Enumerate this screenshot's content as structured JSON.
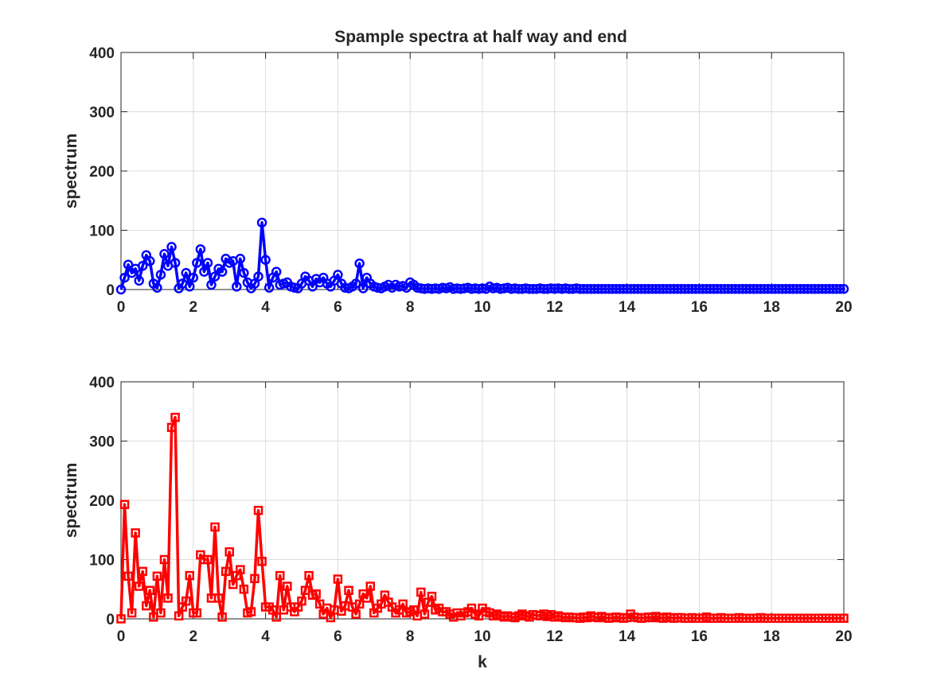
{
  "figure_title": "Spample spectra at half way and end",
  "chart_data": [
    {
      "type": "line",
      "title": "Spample spectra at half way and end",
      "xlabel": "",
      "ylabel": "spectrum",
      "xlim": [
        0,
        20
      ],
      "ylim": [
        0,
        400
      ],
      "xticks": [
        0,
        2,
        4,
        6,
        8,
        10,
        12,
        14,
        16,
        18,
        20
      ],
      "yticks": [
        0,
        100,
        200,
        300,
        400
      ],
      "grid": true,
      "color": "#0000ff",
      "marker": "circle",
      "series": [
        {
          "x": [
            0,
            0.1,
            0.2,
            0.3,
            0.4,
            0.5,
            0.6,
            0.7,
            0.8,
            0.9,
            1.0,
            1.1,
            1.2,
            1.3,
            1.4,
            1.5,
            1.6,
            1.7,
            1.8,
            1.9,
            2.0,
            2.1,
            2.2,
            2.3,
            2.4,
            2.5,
            2.6,
            2.7,
            2.8,
            2.9,
            3.0,
            3.1,
            3.2,
            3.3,
            3.4,
            3.5,
            3.6,
            3.7,
            3.8,
            3.9,
            4.0,
            4.1,
            4.2,
            4.3,
            4.4,
            4.5,
            4.6,
            4.7,
            4.8,
            4.9,
            5.0,
            5.1,
            5.2,
            5.3,
            5.4,
            5.5,
            5.6,
            5.7,
            5.8,
            5.9,
            6.0,
            6.1,
            6.2,
            6.3,
            6.4,
            6.5,
            6.6,
            6.7,
            6.8,
            6.9,
            7.0,
            7.1,
            7.2,
            7.3,
            7.4,
            7.5,
            7.6,
            7.7,
            7.8,
            7.9,
            8.0,
            8.1,
            8.2,
            8.3,
            8.4,
            8.5,
            8.6,
            8.7,
            8.8,
            8.9,
            9.0,
            9.1,
            9.2,
            9.3,
            9.4,
            9.5,
            9.6,
            9.7,
            9.8,
            9.9,
            10.0,
            10.1,
            10.2,
            10.3,
            10.4,
            10.5,
            10.6,
            10.7,
            10.8,
            10.9,
            11.0,
            11.1,
            11.2,
            11.3,
            11.4,
            11.5,
            11.6,
            11.7,
            11.8,
            11.9,
            12.0,
            12.1,
            12.2,
            12.3,
            12.4,
            12.5,
            12.6,
            12.7,
            12.8,
            12.9,
            13.0,
            13.1,
            13.2,
            13.3,
            13.4,
            13.5,
            13.6,
            13.7,
            13.8,
            13.9,
            14.0,
            14.1,
            14.2,
            14.3,
            14.4,
            14.5,
            14.6,
            14.7,
            14.8,
            14.9,
            15.0,
            15.1,
            15.2,
            15.3,
            15.4,
            15.5,
            15.6,
            15.7,
            15.8,
            15.9,
            16.0,
            16.1,
            16.2,
            16.3,
            16.4,
            16.5,
            16.6,
            16.7,
            16.8,
            16.9,
            17.0,
            17.1,
            17.2,
            17.3,
            17.4,
            17.5,
            17.6,
            17.7,
            17.8,
            17.9,
            18.0,
            18.1,
            18.2,
            18.3,
            18.4,
            18.5,
            18.6,
            18.7,
            18.8,
            18.9,
            19.0,
            19.1,
            19.2,
            19.3,
            19.4,
            19.5,
            19.6,
            19.7,
            19.8,
            19.9,
            20.0
          ],
          "y": [
            0,
            20,
            42,
            28,
            35,
            15,
            40,
            58,
            48,
            10,
            3,
            25,
            60,
            40,
            72,
            45,
            2,
            10,
            28,
            5,
            20,
            45,
            68,
            30,
            45,
            8,
            22,
            35,
            30,
            52,
            45,
            48,
            5,
            52,
            28,
            12,
            2,
            10,
            22,
            113,
            50,
            3,
            20,
            30,
            8,
            10,
            12,
            5,
            3,
            2,
            10,
            22,
            15,
            5,
            18,
            12,
            20,
            10,
            5,
            15,
            25,
            10,
            3,
            2,
            5,
            10,
            44,
            2,
            20,
            10,
            5,
            3,
            2,
            5,
            8,
            3,
            8,
            5,
            6,
            3,
            12,
            8,
            3,
            2,
            1,
            2,
            1,
            2,
            1,
            3,
            2,
            4,
            1,
            2,
            1,
            2,
            3,
            1,
            2,
            1,
            2,
            1,
            5,
            2,
            3,
            1,
            2,
            3,
            1,
            2,
            1,
            1,
            2,
            1,
            1,
            1,
            2,
            1,
            1,
            2,
            1,
            2,
            1,
            2,
            1,
            1,
            2,
            1,
            1,
            1,
            1,
            1,
            1,
            1,
            1,
            1,
            1,
            1,
            1,
            1,
            1,
            1,
            1,
            1,
            1,
            1,
            1,
            1,
            1,
            1,
            1,
            1,
            1,
            1,
            1,
            1,
            1,
            1,
            1,
            1,
            1,
            1,
            1,
            1,
            1,
            1,
            1,
            1,
            1,
            1,
            1,
            1,
            1,
            1,
            1,
            1,
            1,
            1,
            1,
            1,
            1,
            1,
            1,
            1,
            1,
            1,
            1,
            1,
            1,
            1,
            1,
            1,
            1,
            1,
            1,
            1,
            1,
            1,
            1,
            1,
            1
          ]
        }
      ]
    },
    {
      "type": "line",
      "title": "",
      "xlabel": "k",
      "ylabel": "spectrum",
      "xlim": [
        0,
        20
      ],
      "ylim": [
        0,
        400
      ],
      "xticks": [
        0,
        2,
        4,
        6,
        8,
        10,
        12,
        14,
        16,
        18,
        20
      ],
      "yticks": [
        0,
        100,
        200,
        300,
        400
      ],
      "grid": true,
      "color": "#ff0000",
      "marker": "square",
      "series": [
        {
          "x": [
            0,
            0.1,
            0.2,
            0.3,
            0.4,
            0.5,
            0.6,
            0.7,
            0.8,
            0.9,
            1.0,
            1.1,
            1.2,
            1.3,
            1.4,
            1.5,
            1.6,
            1.7,
            1.8,
            1.9,
            2.0,
            2.1,
            2.2,
            2.3,
            2.4,
            2.5,
            2.6,
            2.7,
            2.8,
            2.9,
            3.0,
            3.1,
            3.2,
            3.3,
            3.4,
            3.5,
            3.6,
            3.7,
            3.8,
            3.9,
            4.0,
            4.1,
            4.2,
            4.3,
            4.4,
            4.5,
            4.6,
            4.7,
            4.8,
            4.9,
            5.0,
            5.1,
            5.2,
            5.3,
            5.4,
            5.5,
            5.6,
            5.7,
            5.8,
            5.9,
            6.0,
            6.1,
            6.2,
            6.3,
            6.4,
            6.5,
            6.6,
            6.7,
            6.8,
            6.9,
            7.0,
            7.1,
            7.2,
            7.3,
            7.4,
            7.5,
            7.6,
            7.7,
            7.8,
            7.9,
            8.0,
            8.1,
            8.2,
            8.3,
            8.4,
            8.5,
            8.6,
            8.7,
            8.8,
            8.9,
            9.0,
            9.1,
            9.2,
            9.3,
            9.4,
            9.5,
            9.6,
            9.7,
            9.8,
            9.9,
            10.0,
            10.1,
            10.2,
            10.3,
            10.4,
            10.5,
            10.6,
            10.7,
            10.8,
            10.9,
            11.0,
            11.1,
            11.2,
            11.3,
            11.4,
            11.5,
            11.6,
            11.7,
            11.8,
            11.9,
            12.0,
            12.1,
            12.2,
            12.3,
            12.4,
            12.5,
            12.6,
            12.7,
            12.8,
            12.9,
            13.0,
            13.1,
            13.2,
            13.3,
            13.4,
            13.5,
            13.6,
            13.7,
            13.8,
            13.9,
            14.0,
            14.1,
            14.2,
            14.3,
            14.4,
            14.5,
            14.6,
            14.7,
            14.8,
            14.9,
            15.0,
            15.1,
            15.2,
            15.3,
            15.4,
            15.5,
            15.6,
            15.7,
            15.8,
            15.9,
            16.0,
            16.1,
            16.2,
            16.3,
            16.4,
            16.5,
            16.6,
            16.7,
            16.8,
            16.9,
            17.0,
            17.1,
            17.2,
            17.3,
            17.4,
            17.5,
            17.6,
            17.7,
            17.8,
            17.9,
            18.0,
            18.1,
            18.2,
            18.3,
            18.4,
            18.5,
            18.6,
            18.7,
            18.8,
            18.9,
            19.0,
            19.1,
            19.2,
            19.3,
            19.4,
            19.5,
            19.6,
            19.7,
            19.8,
            19.9,
            20.0
          ],
          "y": [
            0,
            193,
            72,
            10,
            145,
            55,
            80,
            22,
            48,
            3,
            72,
            10,
            100,
            35,
            323,
            340,
            5,
            20,
            30,
            73,
            10,
            10,
            108,
            100,
            100,
            35,
            155,
            35,
            3,
            80,
            113,
            58,
            73,
            83,
            50,
            10,
            12,
            68,
            183,
            97,
            20,
            20,
            15,
            3,
            73,
            15,
            55,
            20,
            12,
            20,
            30,
            48,
            73,
            40,
            42,
            25,
            8,
            18,
            2,
            15,
            67,
            13,
            22,
            48,
            20,
            8,
            25,
            42,
            35,
            55,
            10,
            18,
            25,
            40,
            28,
            20,
            10,
            15,
            25,
            10,
            12,
            15,
            5,
            45,
            8,
            28,
            38,
            15,
            18,
            12,
            12,
            8,
            3,
            10,
            5,
            10,
            12,
            18,
            8,
            5,
            18,
            12,
            10,
            5,
            8,
            5,
            3,
            5,
            3,
            2,
            5,
            8,
            5,
            3,
            7,
            6,
            5,
            8,
            4,
            7,
            3,
            5,
            3,
            2,
            3,
            2,
            2,
            1,
            3,
            2,
            5,
            3,
            2,
            4,
            2,
            1,
            2,
            3,
            2,
            1,
            2,
            8,
            3,
            2,
            1,
            2,
            3,
            2,
            4,
            2,
            1,
            3,
            2,
            1,
            2,
            2,
            1,
            1,
            2,
            1,
            1,
            1,
            3,
            1,
            1,
            1,
            2,
            1,
            1,
            1,
            1,
            2,
            1,
            1,
            1,
            1,
            1,
            2,
            1,
            1,
            1,
            1,
            1,
            1,
            1,
            1,
            1,
            1,
            1,
            1,
            1,
            1,
            1,
            1,
            1,
            1,
            1,
            1,
            1,
            1,
            1
          ]
        }
      ]
    }
  ]
}
